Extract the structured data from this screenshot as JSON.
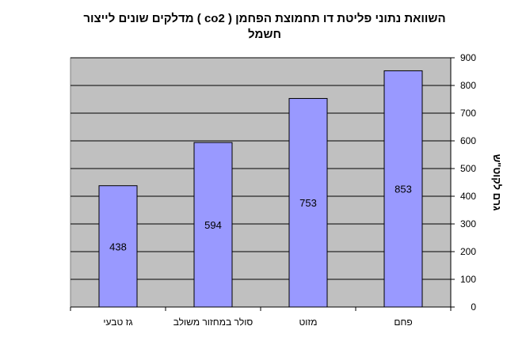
{
  "chart_data": {
    "type": "bar",
    "title": "השוואת נתוני פליטת דו תחמוצת הפחמן ( co2 ) מדלקים שונים לייצור חשמל",
    "title_lines": [
      "השוואת נתוני פליטת דו תחמוצת הפחמן ( co2 ) מדלקים שונים לייצור",
      "חשמל"
    ],
    "categories": [
      "גז טבעי",
      "סולר במחזור משולב",
      "מזוט",
      "פחם"
    ],
    "values": [
      438,
      594,
      753,
      853
    ],
    "data_labels": [
      "438",
      "594",
      "753",
      "853"
    ],
    "xlabel": "",
    "ylabel": "גרם לקוט\"ש",
    "y_axis_side": "right",
    "ylim": [
      0,
      900
    ],
    "yticks": [
      0,
      100,
      200,
      300,
      400,
      500,
      600,
      700,
      800,
      900
    ],
    "grid": true,
    "legend": "none",
    "colors": {
      "plot_background": "#c0c0c0",
      "bar_fill": "#9999ff",
      "bar_stroke": "#000000",
      "gridline": "#000000"
    }
  }
}
